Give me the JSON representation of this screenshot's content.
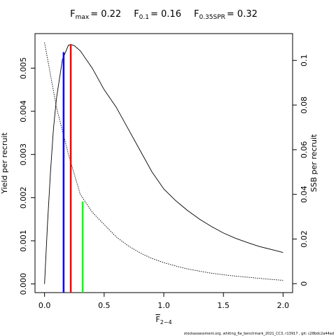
{
  "chart_data": {
    "type": "line",
    "title": [
      {
        "base": "F",
        "sub": "max",
        "rest": "= 0.22",
        "x": 0.22,
        "top": 0.00555,
        "axis": "y",
        "color": "#ff0000"
      },
      {
        "base": "F",
        "sub": "0.1",
        "rest": "= 0.16",
        "x": 0.16,
        "top": 0.00537,
        "axis": "y",
        "color": "#0000ff"
      },
      {
        "base": "F",
        "sub": "0.35SPR",
        "rest": "= 0.32",
        "x": 0.32,
        "top": 0.0368,
        "axis": "y2",
        "color": "#00ff00"
      }
    ],
    "xlabel": {
      "base": "F",
      "sub": "2−4"
    },
    "ylabel": "Yield per recruit",
    "y2label": "SSB per recruit",
    "footnote": "stockassessment.org, whiting_6a_benchmark_2021_CC3, r13917 , git: c28bdc2a44ad",
    "series": [
      {
        "axis": "y",
        "dash": false,
        "color": "#000000",
        "x": [
          0,
          0.025,
          0.05,
          0.075,
          0.1,
          0.15,
          0.2,
          0.22,
          0.25,
          0.3,
          0.4,
          0.5,
          0.6,
          0.7,
          0.8,
          0.9,
          1.0,
          1.1,
          1.2,
          1.3,
          1.4,
          1.5,
          1.6,
          1.7,
          1.8,
          1.9,
          2.0
        ],
        "values": [
          0,
          0.0014,
          0.0026,
          0.0036,
          0.0043,
          0.0052,
          0.00553,
          0.00555,
          0.00552,
          0.0054,
          0.005,
          0.0045,
          0.0041,
          0.0036,
          0.0031,
          0.0026,
          0.0022,
          0.00193,
          0.0017,
          0.0015,
          0.00133,
          0.00118,
          0.00106,
          0.00096,
          0.00087,
          0.0008,
          0.00073
        ]
      },
      {
        "axis": "y2",
        "dash": true,
        "color": "#000000",
        "x": [
          0,
          0.1,
          0.2,
          0.3,
          0.4,
          0.5,
          0.6,
          0.7,
          0.8,
          0.9,
          1.0,
          1.1,
          1.2,
          1.3,
          1.4,
          1.5,
          1.6,
          1.7,
          1.8,
          1.9,
          2.0
        ],
        "values": [
          0.108,
          0.079,
          0.058,
          0.04,
          0.032,
          0.0265,
          0.021,
          0.017,
          0.0138,
          0.0113,
          0.0094,
          0.0079,
          0.0066,
          0.0056,
          0.0047,
          0.004,
          0.0034,
          0.0029,
          0.0024,
          0.0019,
          0.0015
        ]
      }
    ],
    "xlim": [
      -0.08,
      2.08
    ],
    "xticks": [
      {
        "value": 0,
        "label": "0.0"
      },
      0.5,
      {
        "value": 1,
        "label": "1.0"
      },
      1.5,
      {
        "value": 2,
        "label": "2.0"
      }
    ],
    "ylim": [
      -0.0002,
      0.0058
    ],
    "yticks": [
      {
        "value": 0,
        "label": "0.000"
      },
      {
        "value": 0.001,
        "label": "0.001"
      },
      {
        "value": 0.002,
        "label": "0.002"
      },
      {
        "value": 0.003,
        "label": "0.003"
      },
      {
        "value": 0.004,
        "label": "0.004"
      },
      {
        "value": 0.005,
        "label": "0.005"
      }
    ],
    "y2lim": [
      -0.004,
      0.112
    ],
    "y2ticks": [
      0,
      0.02,
      0.04,
      0.06,
      0.08,
      0.1
    ]
  }
}
